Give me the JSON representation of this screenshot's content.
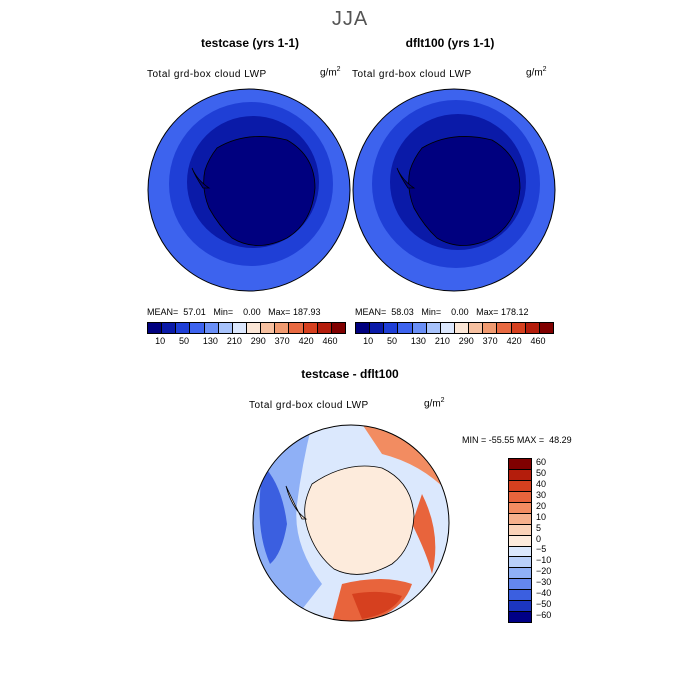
{
  "title": "JJA",
  "chart_data": [
    {
      "type": "heatmap",
      "projection": "south polar stereographic",
      "title": "testcase (yrs 1-1)",
      "variable": "Total grd-box cloud LWP",
      "units_base": "g/m",
      "units_exp": "2",
      "mean_label": "MEAN=",
      "mean": "57.01",
      "min_label": "Min=",
      "min": "0.00",
      "max_label": "Max=",
      "max": "187.93",
      "colorbar_ticks": [
        "10",
        "50",
        "130",
        "210",
        "290",
        "370",
        "420",
        "460"
      ]
    },
    {
      "type": "heatmap",
      "projection": "south polar stereographic",
      "title": "dflt100 (yrs 1-1)",
      "variable": "Total grd-box cloud LWP",
      "units_base": "g/m",
      "units_exp": "2",
      "mean_label": "MEAN=",
      "mean": "58.03",
      "min_label": "Min=",
      "min": "0.00",
      "max_label": "Max=",
      "max": "178.12",
      "colorbar_ticks": [
        "10",
        "50",
        "130",
        "210",
        "290",
        "370",
        "420",
        "460"
      ]
    },
    {
      "type": "heatmap",
      "projection": "south polar stereographic",
      "title": "testcase - dflt100",
      "variable": "Total grd-box cloud LWP",
      "units_base": "g/m",
      "units_exp": "2",
      "min_label": "MIN =",
      "min": "-55.55",
      "max_label": "MAX =",
      "max": "48.29",
      "colorbar_labels": [
        "60",
        "50",
        "40",
        "30",
        "20",
        "10",
        "5",
        "0",
        "−5",
        "−10",
        "−20",
        "−30",
        "−40",
        "−50",
        "−60"
      ]
    }
  ],
  "colors": {
    "abs_scale": [
      "#00007f",
      "#0a1aa8",
      "#1f3fd6",
      "#3d63ee",
      "#6a8ff6",
      "#a7c2fb",
      "#dbe7fd",
      "#fbe6d6",
      "#f6c0a0",
      "#f09a70",
      "#e86a42",
      "#d6401f",
      "#b41d0c",
      "#800000"
    ],
    "diff_scale": [
      "#800000",
      "#b41d0c",
      "#d6401f",
      "#e8643c",
      "#f28c61",
      "#f6b08c",
      "#fad2b8",
      "#fdebdc",
      "#dbe8fd",
      "#b9d0fa",
      "#8fb0f6",
      "#6487ee",
      "#3b5fe0",
      "#1c36c0",
      "#000086"
    ]
  }
}
